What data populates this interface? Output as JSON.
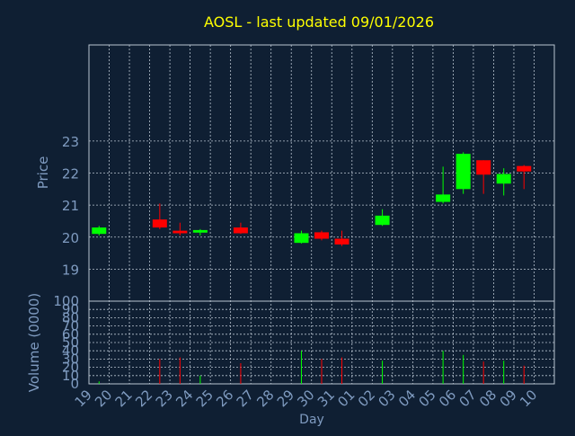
{
  "colors": {
    "background": "#0f1f33",
    "grid": "#b8c4d0",
    "title": "#ffff00",
    "axis_text": "#7f9bc0",
    "up": "#00ff00",
    "down": "#ff0000"
  },
  "chart_data": {
    "type": "candlestick",
    "title": "AOSL - last updated 09/01/2026",
    "grid": true,
    "price": {
      "ylabel": "Price",
      "ylim": [
        18,
        26
      ],
      "yticks": [
        "19",
        "20",
        "21",
        "22",
        "23"
      ]
    },
    "volume": {
      "ylabel": "Volume (0000)",
      "ylim": [
        0,
        100
      ],
      "yticks": [
        "0",
        "10",
        "20",
        "30",
        "40",
        "50",
        "60",
        "70",
        "80",
        "90",
        "100"
      ]
    },
    "xlabel": "Day",
    "categories": [
      "19",
      "20",
      "21",
      "22",
      "23",
      "24",
      "25",
      "26",
      "27",
      "28",
      "29",
      "30",
      "31",
      "01",
      "02",
      "03",
      "04",
      "05",
      "06",
      "07",
      "08",
      "09",
      "10"
    ],
    "candles": [
      {
        "day": "19",
        "open": 20.1,
        "close": 20.3,
        "high": 20.35,
        "low": 20.05,
        "volume": 3
      },
      {
        "day": "22",
        "open": 20.55,
        "close": 20.3,
        "high": 21.05,
        "low": 20.25,
        "volume": 30
      },
      {
        "day": "23",
        "open": 20.2,
        "close": 20.12,
        "high": 20.45,
        "low": 20.05,
        "volume": 32
      },
      {
        "day": "24",
        "open": 20.14,
        "close": 20.22,
        "high": 20.25,
        "low": 20.05,
        "volume": 10
      },
      {
        "day": "26",
        "open": 20.3,
        "close": 20.12,
        "high": 20.45,
        "low": 20.1,
        "volume": 25
      },
      {
        "day": "29",
        "open": 19.82,
        "close": 20.12,
        "high": 20.2,
        "low": 19.8,
        "volume": 40
      },
      {
        "day": "30",
        "open": 20.15,
        "close": 19.95,
        "high": 20.2,
        "low": 19.9,
        "volume": 30
      },
      {
        "day": "31",
        "open": 19.95,
        "close": 19.77,
        "high": 20.2,
        "low": 19.72,
        "volume": 32
      },
      {
        "day": "02",
        "open": 20.38,
        "close": 20.67,
        "high": 20.87,
        "low": 20.35,
        "volume": 28
      },
      {
        "day": "05",
        "open": 21.1,
        "close": 21.33,
        "high": 22.2,
        "low": 21.05,
        "volume": 40
      },
      {
        "day": "06",
        "open": 21.5,
        "close": 22.6,
        "high": 22.65,
        "low": 21.35,
        "volume": 35
      },
      {
        "day": "07",
        "open": 22.4,
        "close": 21.95,
        "high": 22.4,
        "low": 21.35,
        "volume": 27
      },
      {
        "day": "08",
        "open": 21.67,
        "close": 21.97,
        "high": 22.15,
        "low": 21.3,
        "volume": 28
      },
      {
        "day": "09",
        "open": 22.22,
        "close": 22.05,
        "high": 22.25,
        "low": 21.5,
        "volume": 22
      }
    ]
  }
}
